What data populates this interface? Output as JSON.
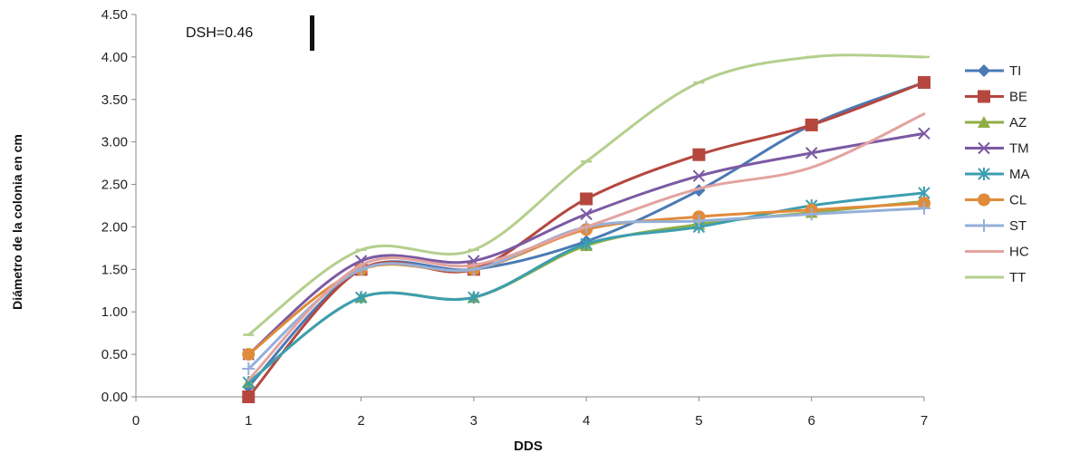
{
  "chart_data": {
    "type": "line",
    "title": "",
    "xlabel": "DDS",
    "ylabel": "Diámetro de la colonia en cm",
    "annotation": "DSH=0.46",
    "xlim": [
      0,
      7
    ],
    "ylim": [
      0,
      4.5
    ],
    "x_ticks": [
      "0",
      "1",
      "2",
      "3",
      "4",
      "5",
      "6",
      "7"
    ],
    "y_ticks": [
      "0.00",
      "0.50",
      "1.00",
      "1.50",
      "2.00",
      "2.50",
      "3.00",
      "3.50",
      "4.00",
      "4.50"
    ],
    "x": [
      1,
      2,
      3,
      4,
      5,
      6,
      7
    ],
    "legend_position": "right",
    "grid": false,
    "series": [
      {
        "name": "TI",
        "color": "#4a7ab5",
        "marker": "diamond",
        "values": [
          0.12,
          1.5,
          1.5,
          1.83,
          2.43,
          3.2,
          3.7
        ]
      },
      {
        "name": "BE",
        "color": "#b5473f",
        "marker": "square",
        "values": [
          0.0,
          1.5,
          1.5,
          2.33,
          2.85,
          3.2,
          3.7
        ]
      },
      {
        "name": "AZ",
        "color": "#8fae46",
        "marker": "triangle",
        "values": [
          0.17,
          1.17,
          1.17,
          1.78,
          2.03,
          2.17,
          2.3
        ]
      },
      {
        "name": "TM",
        "color": "#7b5aa3",
        "marker": "x",
        "values": [
          0.5,
          1.6,
          1.6,
          2.15,
          2.6,
          2.87,
          3.1
        ]
      },
      {
        "name": "MA",
        "color": "#3c9eb0",
        "marker": "asterisk",
        "values": [
          0.17,
          1.17,
          1.17,
          1.8,
          2.0,
          2.25,
          2.4
        ]
      },
      {
        "name": "CL",
        "color": "#e08b3a",
        "marker": "circle",
        "values": [
          0.5,
          1.5,
          1.5,
          1.97,
          2.12,
          2.2,
          2.28
        ]
      },
      {
        "name": "ST",
        "color": "#95b0d8",
        "marker": "plus",
        "values": [
          0.33,
          1.5,
          1.5,
          2.0,
          2.07,
          2.15,
          2.22
        ]
      },
      {
        "name": "HC",
        "color": "#e3a3a0",
        "marker": "none",
        "values": [
          0.2,
          1.55,
          1.55,
          2.0,
          2.45,
          2.7,
          3.33
        ]
      },
      {
        "name": "TT",
        "color": "#b5cf8d",
        "marker": "dash",
        "values": [
          0.73,
          1.73,
          1.73,
          2.77,
          3.7,
          4.0,
          4.0
        ]
      }
    ]
  }
}
